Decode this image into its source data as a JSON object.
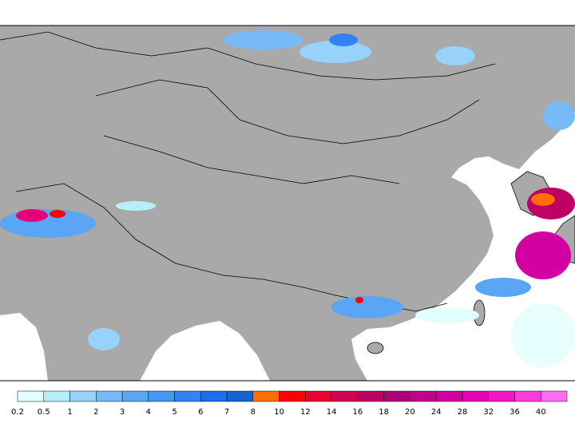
{
  "colorbar": {
    "labels": [
      "0.2",
      "0.5",
      "1",
      "2",
      "3",
      "4",
      "5",
      "6",
      "7",
      "8",
      "10",
      "12",
      "14",
      "16",
      "18",
      "20",
      "24",
      "28",
      "32",
      "36",
      "40"
    ],
    "colors": [
      "#e1ffff",
      "#b4f0fa",
      "#96d2fa",
      "#78b9fa",
      "#5aa5f5",
      "#4696f5",
      "#3282f0",
      "#1e6eeb",
      "#1464d2",
      "#ff6e00",
      "#ff0000",
      "#eb0032",
      "#d20050",
      "#be0064",
      "#aa0078",
      "#be008c",
      "#d200a0",
      "#e600b4",
      "#f514c8",
      "#ff3cdc",
      "#ff6ef0"
    ]
  }
}
